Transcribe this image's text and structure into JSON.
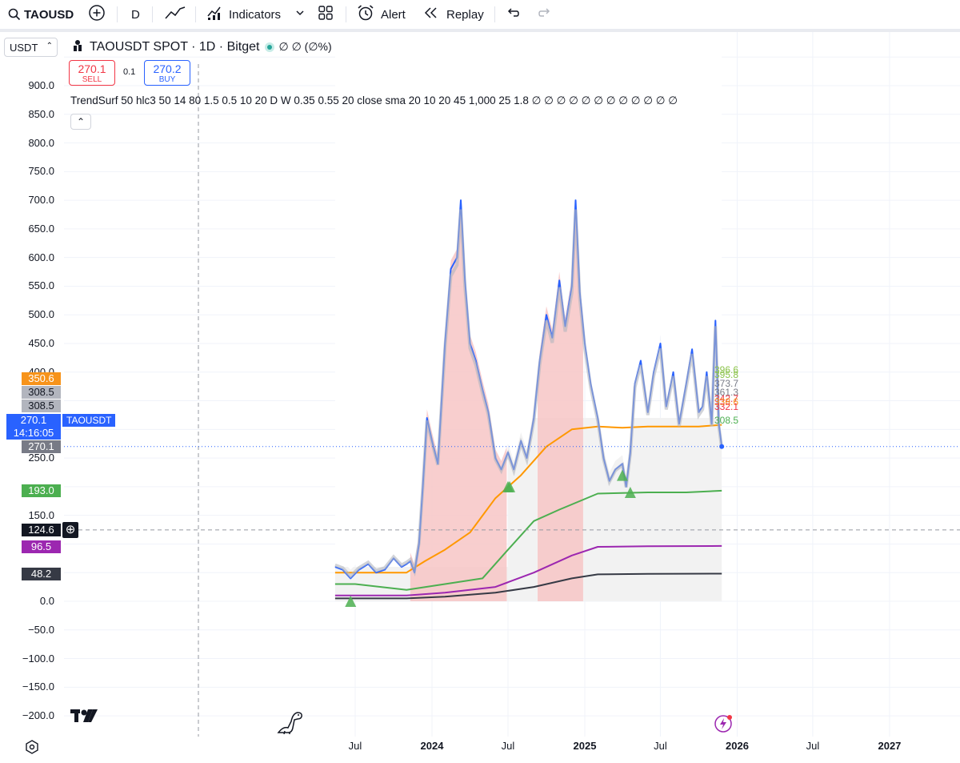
{
  "toolbar": {
    "symbol": "TAOUSD",
    "interval": "D",
    "indicators_label": "Indicators",
    "alert_label": "Alert",
    "replay_label": "Replay",
    "icons": [
      "search-icon",
      "add-symbol-icon",
      "line-chart-icon",
      "indicators-icon",
      "chevron-down-icon",
      "layout-grid-icon",
      "alarm-clock-icon",
      "replay-icon",
      "undo-icon",
      "redo-icon"
    ]
  },
  "unit_select": {
    "value": "USDT"
  },
  "legend": {
    "title": "TAOUSDT SPOT · 1D · Bitget",
    "status_color": "#26a69a",
    "values": "∅ ∅ (∅%)"
  },
  "trade": {
    "sell_price": "270.1",
    "sell_label": "SELL",
    "spread": "0.1",
    "buy_price": "270.2",
    "buy_label": "BUY"
  },
  "indicator": {
    "text": "TrendSurf 50 hlc3 50 14 80 1.5 0.5 10 20 D W 0.35 0.55 20 close sma 20 10 20 45 1,000 25 1.8 ∅ ∅ ∅ ∅ ∅ ∅ ∅ ∅ ∅ ∅ ∅ ∅",
    "collapse_icon": "chevron-up-icon"
  },
  "price_axis": {
    "ticks": [
      "900.0",
      "850.0",
      "800.0",
      "750.0",
      "700.0",
      "650.0",
      "600.0",
      "550.0",
      "500.0",
      "450.0",
      "400.0",
      "250.0",
      "150.0",
      "0.0",
      "−50.0",
      "−100.0",
      "−150.0",
      "−200.0"
    ],
    "badges": [
      {
        "text": "350.6",
        "color": "#f7931a"
      },
      {
        "text": "308.5",
        "color": "#b2b5be"
      },
      {
        "text": "308.5",
        "color": "#b2b5be"
      },
      {
        "text": "270.1",
        "color": "#2962ff"
      },
      {
        "text": "14:16:05",
        "color": "#2962ff"
      },
      {
        "text": "270.1",
        "color": "#787b86"
      },
      {
        "text": "193.0",
        "color": "#4caf50"
      },
      {
        "text": "124.6",
        "color": "#131722"
      },
      {
        "text": "96.5",
        "color": "#9c27b0"
      },
      {
        "text": "48.2",
        "color": "#363a45"
      }
    ],
    "symbol_tag": "TAOUSDT"
  },
  "right_labels": [
    "396.6",
    "395.8",
    "373.7",
    "361.3",
    "342.7",
    "338.6",
    "332.1",
    "308.5"
  ],
  "time_axis": {
    "labels": [
      {
        "text": "Jul",
        "year": false
      },
      {
        "text": "2024",
        "year": true
      },
      {
        "text": "Jul",
        "year": false
      },
      {
        "text": "2025",
        "year": true
      },
      {
        "text": "Jul",
        "year": false
      },
      {
        "text": "2026",
        "year": true
      },
      {
        "text": "Jul",
        "year": false
      },
      {
        "text": "2027",
        "year": true
      }
    ]
  },
  "chart_data": {
    "type": "line",
    "title": "TAOUSDT SPOT · 1D · Bitget",
    "ylim": [
      -200,
      950
    ],
    "x_range": [
      "2023-05-01",
      "2027-04-01"
    ],
    "series": [
      {
        "color": "#2962ff",
        "x": [
          "2023-05-14",
          "2023-06-01",
          "2023-06-20",
          "2023-07-10",
          "2023-08-01",
          "2023-08-20",
          "2023-09-10",
          "2023-10-01",
          "2023-10-20",
          "2023-11-01",
          "2023-11-10",
          "2023-11-20",
          "2023-12-01",
          "2023-12-10",
          "2023-12-20",
          "2024-01-01",
          "2024-01-15",
          "2024-02-01",
          "2024-02-15",
          "2024-03-01",
          "2024-03-10",
          "2024-03-20",
          "2024-04-01",
          "2024-04-15",
          "2024-05-01",
          "2024-05-15",
          "2024-06-01",
          "2024-06-15",
          "2024-07-01",
          "2024-07-15",
          "2024-08-01",
          "2024-08-15",
          "2024-09-01",
          "2024-09-15",
          "2024-10-01",
          "2024-10-15",
          "2024-11-01",
          "2024-11-15",
          "2024-12-01",
          "2024-12-10",
          "2024-12-20",
          "2025-01-01",
          "2025-01-15",
          "2025-02-01",
          "2025-02-15",
          "2025-03-01",
          "2025-03-15",
          "2025-04-01",
          "2025-04-10",
          "2025-04-20",
          "2025-05-01",
          "2025-05-15",
          "2025-06-01",
          "2025-06-15",
          "2025-07-01",
          "2025-07-15",
          "2025-08-01",
          "2025-08-15",
          "2025-09-01",
          "2025-09-15",
          "2025-10-01",
          "2025-10-10",
          "2025-10-20",
          "2025-11-01",
          "2025-11-10",
          "2025-11-18",
          "2025-11-25"
        ],
        "values": [
          60,
          55,
          40,
          55,
          65,
          50,
          55,
          75,
          60,
          65,
          70,
          50,
          100,
          200,
          320,
          280,
          240,
          450,
          580,
          600,
          700,
          560,
          450,
          420,
          370,
          330,
          250,
          230,
          260,
          230,
          280,
          250,
          320,
          420,
          500,
          460,
          560,
          480,
          550,
          700,
          540,
          450,
          380,
          320,
          250,
          210,
          230,
          240,
          200,
          260,
          380,
          420,
          330,
          400,
          450,
          340,
          400,
          310,
          380,
          440,
          330,
          340,
          400,
          310,
          490,
          310,
          270
        ]
      },
      {
        "color": "#ff9800",
        "x": [
          "2023-05-14",
          "2023-08-01",
          "2023-11-01",
          "2023-12-15",
          "2024-02-01",
          "2024-04-01",
          "2024-06-01",
          "2024-08-01",
          "2024-10-01",
          "2024-12-01",
          "2025-02-01",
          "2025-04-01",
          "2025-06-01",
          "2025-08-01",
          "2025-10-01",
          "2025-11-25"
        ],
        "values": [
          50,
          50,
          50,
          70,
          90,
          120,
          180,
          220,
          270,
          300,
          305,
          303,
          305,
          305,
          305,
          308
        ]
      },
      {
        "color": "#4caf50",
        "x": [
          "2023-05-14",
          "2023-07-01",
          "2023-11-01",
          "2024-02-01",
          "2024-05-01",
          "2024-07-01",
          "2024-09-01",
          "2024-11-01",
          "2025-02-01",
          "2025-06-01",
          "2025-09-01",
          "2025-11-25"
        ],
        "values": [
          30,
          30,
          20,
          30,
          40,
          90,
          140,
          160,
          188,
          190,
          190,
          193
        ]
      },
      {
        "color": "#9c27b0",
        "x": [
          "2023-05-14",
          "2023-11-01",
          "2024-02-01",
          "2024-06-01",
          "2024-09-01",
          "2024-12-01",
          "2025-02-01",
          "2025-06-01",
          "2025-11-25"
        ],
        "values": [
          10,
          10,
          15,
          25,
          50,
          80,
          95,
          96,
          96.5
        ]
      },
      {
        "color": "#363a45",
        "x": [
          "2023-05-14",
          "2023-11-01",
          "2024-02-01",
          "2024-06-01",
          "2024-09-01",
          "2024-12-01",
          "2025-02-01",
          "2025-06-01",
          "2025-11-25"
        ],
        "values": [
          5,
          5,
          8,
          15,
          25,
          40,
          47,
          48,
          48.2
        ]
      }
    ]
  }
}
